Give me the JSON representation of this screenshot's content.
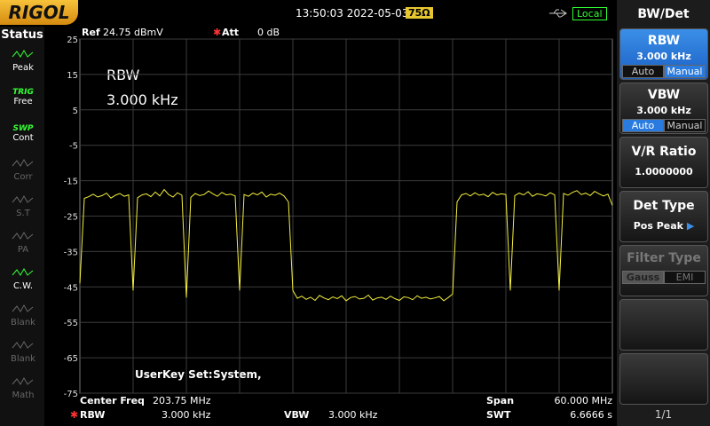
{
  "header": {
    "logo": "RIGOL",
    "datetime": "13:50:03 2022-05-03",
    "impedance": "75Ω",
    "mode": "Local"
  },
  "status": {
    "title": "Status",
    "items": [
      {
        "label": "Peak"
      },
      {
        "tag": "TRIG",
        "label": "Free"
      },
      {
        "tag": "SWP",
        "label": "Cont"
      },
      {
        "label": "Corr"
      },
      {
        "label": "S.T"
      },
      {
        "label": "PA"
      },
      {
        "label": "C.W."
      },
      {
        "label": "Blank"
      },
      {
        "label": "Blank"
      },
      {
        "label": "Math"
      }
    ]
  },
  "screen": {
    "ref_label": "Ref",
    "ref_value": "24.75 dBmV",
    "att_label": "Att",
    "att_value": "0 dB",
    "annotation_title": "RBW",
    "annotation_value": "3.000 kHz",
    "userkey_label": "UserKey Set:",
    "userkey_value": "System,",
    "ylim": [
      -75,
      25
    ],
    "yticks": [
      25,
      15,
      5,
      -5,
      -15,
      -25,
      -35,
      -45,
      -55,
      -65,
      -75
    ],
    "trace_color": "#f5f03c",
    "trace": [
      -44,
      -20,
      -19.5,
      -18.8,
      -19.6,
      -19.2,
      -18.5,
      -19.9,
      -19.1,
      -18.6,
      -19.4,
      -19.0,
      -46,
      -19.8,
      -19.0,
      -18.7,
      -19.5,
      -18.2,
      -19.3,
      -17.5,
      -18.9,
      -19.6,
      -18.4,
      -19.1,
      -48,
      -19.7,
      -18.6,
      -19.2,
      -18.9,
      -17.9,
      -18.7,
      -19.4,
      -18.3,
      -19.0,
      -18.8,
      -19.3,
      -46,
      -18.9,
      -19.4,
      -18.5,
      -19.0,
      -18.2,
      -19.6,
      -18.8,
      -19.1,
      -18.5,
      -19.3,
      -21,
      -46,
      -48.2,
      -47.6,
      -48.5,
      -47.9,
      -48.8,
      -47.4,
      -48.1,
      -48.6,
      -47.8,
      -48.3,
      -47.5,
      -48.9,
      -48.0,
      -47.7,
      -48.4,
      -48.2,
      -47.3,
      -48.7,
      -48.1,
      -47.9,
      -48.5,
      -47.6,
      -48.3,
      -48.8,
      -47.8,
      -48.0,
      -48.6,
      -47.5,
      -48.2,
      -47.9,
      -48.4,
      -48.1,
      -47.7,
      -48.9,
      -48.0,
      -47,
      -21,
      -19.0,
      -18.6,
      -19.3,
      -18.4,
      -19.1,
      -18.8,
      -19.5,
      -18.3,
      -19.0,
      -18.7,
      -18.9,
      -46,
      -19.2,
      -18.5,
      -19.0,
      -18.1,
      -19.4,
      -18.7,
      -18.9,
      -19.3,
      -18.4,
      -19.0,
      -46,
      -18.6,
      -19.1,
      -18.3,
      -17.8,
      -18.9,
      -18.5,
      -19.2,
      -18.0,
      -18.7,
      -19.3,
      -18.8,
      -22
    ]
  },
  "footer": {
    "center_label": "Center Freq",
    "center_value": "203.75 MHz",
    "span_label": "Span",
    "span_value": "60.000 MHz",
    "rbw_label": "RBW",
    "rbw_value": "3.000 kHz",
    "vbw_label": "VBW",
    "vbw_value": "3.000 kHz",
    "swt_label": "SWT",
    "swt_value": "6.6666 s"
  },
  "menu": {
    "title": "BW/Det",
    "rbw": {
      "label": "RBW",
      "value": "3.000 kHz",
      "auto": "Auto",
      "manual": "Manual"
    },
    "vbw": {
      "label": "VBW",
      "value": "3.000 kHz",
      "auto": "Auto",
      "manual": "Manual"
    },
    "vr": {
      "label": "V/R Ratio",
      "value": "1.0000000"
    },
    "det": {
      "label": "Det Type",
      "value": "Pos Peak"
    },
    "filter": {
      "label": "Filter Type",
      "gauss": "Gauss",
      "emi": "EMI"
    },
    "page": "1/1"
  }
}
